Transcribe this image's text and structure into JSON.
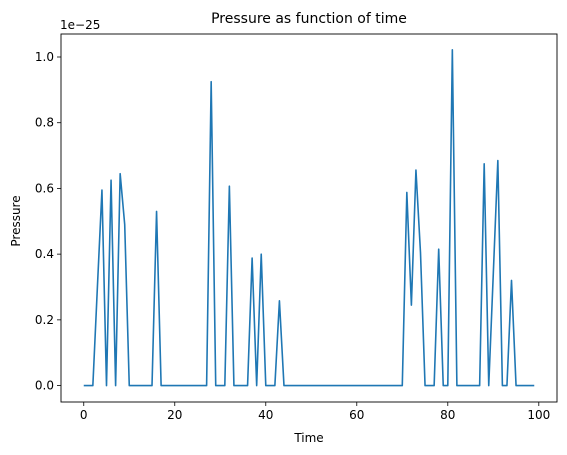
{
  "chart_data": {
    "type": "line",
    "title": "Pressure as function of time",
    "xlabel": "Time",
    "ylabel": "Pressure",
    "y_offset_text": "1e−25",
    "xlim": [
      -5,
      104
    ],
    "ylim": [
      -0.05,
      1.07
    ],
    "xticks": [
      0,
      20,
      40,
      60,
      80,
      100
    ],
    "xtick_labels": [
      "0",
      "20",
      "40",
      "60",
      "80",
      "100"
    ],
    "yticks": [
      0.0,
      0.2,
      0.4,
      0.6,
      0.8,
      1.0
    ],
    "ytick_labels": [
      "0.0",
      "0.2",
      "0.4",
      "0.6",
      "0.8",
      "1.0"
    ],
    "grid": false,
    "series": [
      {
        "color": "#1f77b4",
        "x": [
          0,
          1,
          2,
          3,
          4,
          5,
          6,
          7,
          8,
          9,
          10,
          11,
          12,
          13,
          14,
          15,
          16,
          17,
          18,
          19,
          20,
          21,
          22,
          23,
          24,
          25,
          26,
          27,
          28,
          29,
          30,
          31,
          32,
          33,
          34,
          35,
          36,
          37,
          38,
          39,
          40,
          41,
          42,
          43,
          44,
          45,
          46,
          47,
          48,
          49,
          50,
          51,
          52,
          53,
          54,
          55,
          56,
          57,
          58,
          59,
          60,
          61,
          62,
          63,
          64,
          65,
          66,
          67,
          68,
          69,
          70,
          71,
          72,
          73,
          74,
          75,
          76,
          77,
          78,
          79,
          80,
          81,
          82,
          83,
          84,
          85,
          86,
          87,
          88,
          89,
          90,
          91,
          92,
          93,
          94,
          95,
          96,
          97,
          98,
          99
        ],
        "y": [
          0,
          0,
          0,
          0.3,
          0.595,
          0,
          0.625,
          0,
          0.645,
          0.49,
          0,
          0,
          0,
          0,
          0,
          0,
          0.53,
          0,
          0,
          0,
          0,
          0,
          0,
          0,
          0,
          0,
          0,
          0,
          0.925,
          0,
          0,
          0,
          0.607,
          0,
          0,
          0,
          0,
          0.388,
          0,
          0.4,
          0,
          0,
          0,
          0.258,
          0,
          0,
          0,
          0,
          0,
          0,
          0,
          0,
          0,
          0,
          0,
          0,
          0,
          0,
          0,
          0,
          0,
          0,
          0,
          0,
          0,
          0,
          0,
          0,
          0,
          0,
          0,
          0.588,
          0.245,
          0.656,
          0.405,
          0,
          0,
          0,
          0.415,
          0,
          0,
          1.022,
          0,
          0,
          0,
          0,
          0,
          0,
          0.675,
          0,
          0.34,
          0.685,
          0,
          0,
          0.32,
          0,
          0,
          0,
          0,
          0
        ]
      }
    ]
  }
}
